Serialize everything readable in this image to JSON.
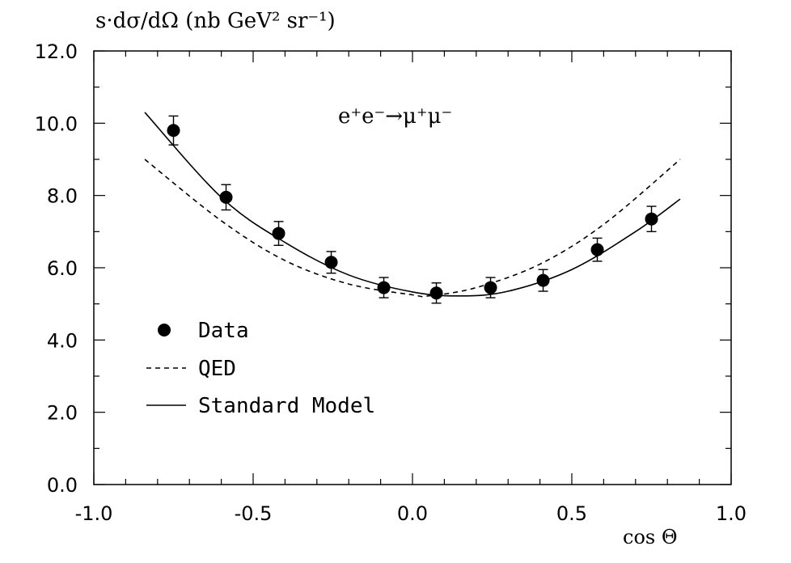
{
  "chart_data": {
    "type": "scatter",
    "ylabel": "s·dσ/dΩ (nb GeV² sr⁻¹)",
    "xlabel": "cos Θ",
    "annotation": "e⁺e⁻→μ⁺μ⁻",
    "xlim": [
      -1.0,
      1.0
    ],
    "ylim": [
      0.0,
      12.0
    ],
    "x_ticks": [
      -1.0,
      -0.5,
      0.0,
      0.5,
      1.0
    ],
    "x_tick_labels": [
      "-1.0",
      "-0.5",
      "0.0",
      "0.5",
      "1.0"
    ],
    "y_ticks": [
      0.0,
      2.0,
      4.0,
      6.0,
      8.0,
      10.0,
      12.0
    ],
    "y_tick_labels": [
      "0.0",
      "2.0",
      "4.0",
      "6.0",
      "8.0",
      "10.0",
      "12.0"
    ],
    "legend_position": "lower-left",
    "grid": false,
    "series": [
      {
        "name": "Data",
        "kind": "points",
        "x": [
          -0.75,
          -0.585,
          -0.42,
          -0.255,
          -0.09,
          0.075,
          0.245,
          0.41,
          0.58,
          0.75
        ],
        "y": [
          9.8,
          7.95,
          6.95,
          6.15,
          5.45,
          5.3,
          5.45,
          5.65,
          6.5,
          7.35
        ],
        "yerr": [
          0.4,
          0.35,
          0.33,
          0.3,
          0.28,
          0.28,
          0.28,
          0.3,
          0.32,
          0.35
        ]
      },
      {
        "name": "QED",
        "kind": "dashed-line",
        "x": [
          -0.84,
          -0.6,
          -0.4,
          -0.2,
          0.0,
          0.05,
          0.2,
          0.4,
          0.6,
          0.84
        ],
        "y": [
          9.0,
          7.3,
          6.2,
          5.55,
          5.25,
          5.22,
          5.45,
          6.1,
          7.2,
          9.0
        ]
      },
      {
        "name": "Standard Model",
        "kind": "solid-line",
        "x": [
          -0.84,
          -0.6,
          -0.4,
          -0.2,
          0.0,
          0.15,
          0.3,
          0.5,
          0.7,
          0.84
        ],
        "y": [
          10.3,
          7.95,
          6.7,
          5.8,
          5.33,
          5.22,
          5.35,
          5.95,
          7.0,
          7.9
        ]
      }
    ]
  }
}
